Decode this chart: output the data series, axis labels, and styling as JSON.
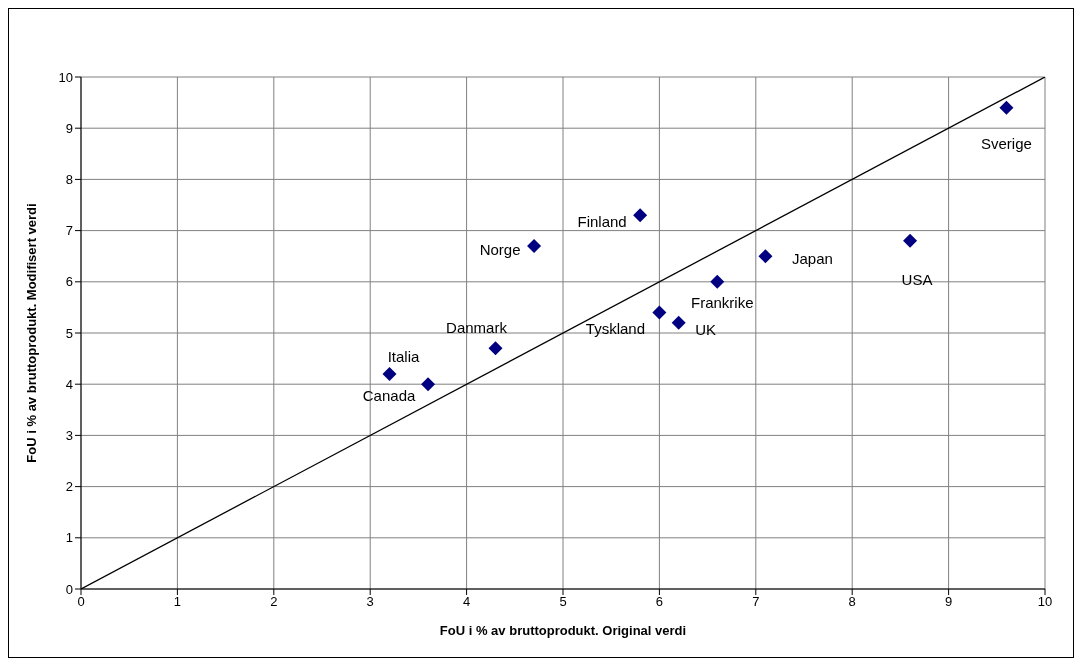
{
  "chart_data": {
    "type": "scatter",
    "xlabel": "FoU i % av bruttoprodukt. Original verdi",
    "ylabel": "FoU i % av bruttoprodukt. Modifisert verdi",
    "xlim": [
      0,
      10
    ],
    "xticks": [
      0,
      1,
      2,
      3,
      4,
      5,
      6,
      7,
      8,
      9,
      10
    ],
    "ylim": [
      0,
      10
    ],
    "yticks": [
      0,
      1,
      2,
      3,
      4,
      5,
      6,
      7,
      8,
      9,
      10
    ],
    "grid": true,
    "legend": false,
    "series": [
      {
        "marker": "diamond",
        "color": "#000080",
        "x": [
          3.2,
          3.6,
          4.3,
          4.7,
          5.8,
          6.0,
          6.2,
          6.6,
          7.1,
          8.6,
          9.6
        ],
        "values": [
          4.2,
          4.0,
          4.7,
          6.7,
          7.3,
          5.4,
          5.2,
          6.0,
          6.5,
          6.8,
          9.4
        ]
      },
      {
        "type": "line",
        "marker": "none",
        "line_style": "solid",
        "color": "#000000",
        "x": [
          0,
          10
        ],
        "values": [
          0,
          10
        ]
      }
    ],
    "annotations": [
      {
        "text": "Italia",
        "x": 3.2,
        "y": 4.2
      },
      {
        "text": "Canada",
        "x": 3.6,
        "y": 4.0
      },
      {
        "text": "Danmark",
        "x": 4.3,
        "y": 4.7
      },
      {
        "text": "Norge",
        "x": 4.7,
        "y": 6.7
      },
      {
        "text": "Finland",
        "x": 5.8,
        "y": 7.3
      },
      {
        "text": "Tyskland",
        "x": 6.0,
        "y": 5.4
      },
      {
        "text": "UK",
        "x": 6.2,
        "y": 5.2
      },
      {
        "text": "Frankrike",
        "x": 6.6,
        "y": 6.0
      },
      {
        "text": "Japan",
        "x": 7.1,
        "y": 6.5
      },
      {
        "text": "USA",
        "x": 8.6,
        "y": 6.8
      },
      {
        "text": "Sverige",
        "x": 9.6,
        "y": 9.4
      }
    ]
  }
}
